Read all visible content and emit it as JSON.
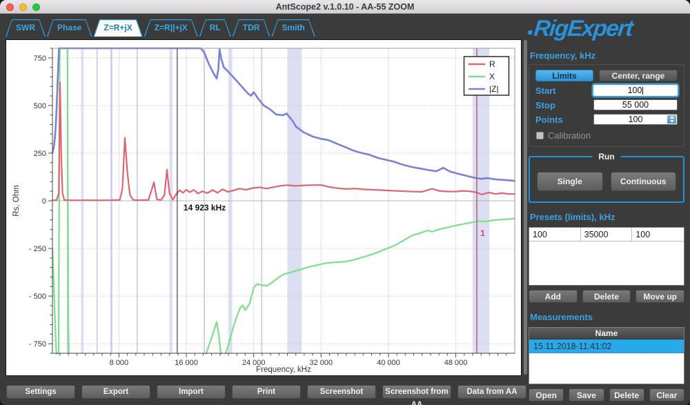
{
  "window": {
    "title": "AntScope2 v.1.0.10 - AA-55 ZOOM"
  },
  "tabs": [
    {
      "label": "SWR",
      "active": false
    },
    {
      "label": "Phase",
      "active": false
    },
    {
      "label": "Z=R+jX",
      "active": true
    },
    {
      "label": "Z=R||+jX",
      "active": false
    },
    {
      "label": "RL",
      "active": false
    },
    {
      "label": "TDR",
      "active": false
    },
    {
      "label": "Smith",
      "active": false
    }
  ],
  "chart_data": {
    "type": "line",
    "title": "",
    "xlabel": "Frequency, kHz",
    "ylabel": "Rs, Ohm",
    "xlim": [
      100,
      55000
    ],
    "ylim": [
      -800,
      800
    ],
    "xticks": [
      8000,
      16000,
      24000,
      32000,
      40000,
      48000
    ],
    "xtick_labels": [
      "8 000",
      "16 000",
      "24 000",
      "32 000",
      "40 000",
      "48 000"
    ],
    "yticks": [
      750,
      500,
      250,
      0,
      -250,
      -500,
      -750
    ],
    "ytick_labels": [
      "750",
      "500",
      "250",
      "0",
      "- 250",
      "- 500",
      "- 750"
    ],
    "grid": true,
    "legend_position": "top-right",
    "cursor_khz": 14923,
    "cursor_label": "14 923 kHz",
    "marker1_khz": 50500,
    "marker1_label": "1",
    "ham_bands_khz": [
      [
        1810,
        2000
      ],
      [
        3500,
        3800
      ],
      [
        5330,
        5405
      ],
      [
        7000,
        7200
      ],
      [
        10100,
        10150
      ],
      [
        14000,
        14350
      ],
      [
        18068,
        18168
      ],
      [
        21000,
        21450
      ],
      [
        24890,
        24990
      ],
      [
        28000,
        29700
      ],
      [
        50000,
        52000
      ]
    ],
    "band_color": "#8a93cf",
    "series": [
      {
        "name": "R",
        "color": "#e0646e",
        "width": 2.2,
        "points": [
          [
            100,
            2
          ],
          [
            600,
            3
          ],
          [
            850,
            40
          ],
          [
            1000,
            620
          ],
          [
            1150,
            230
          ],
          [
            1300,
            40
          ],
          [
            1500,
            4
          ],
          [
            2500,
            2
          ],
          [
            4000,
            3
          ],
          [
            5500,
            2
          ],
          [
            7000,
            3
          ],
          [
            8100,
            4
          ],
          [
            8400,
            60
          ],
          [
            8700,
            330
          ],
          [
            9000,
            150
          ],
          [
            9300,
            30
          ],
          [
            9700,
            4
          ],
          [
            10500,
            3
          ],
          [
            11500,
            4
          ],
          [
            12150,
            98
          ],
          [
            12500,
            8
          ],
          [
            13000,
            4
          ],
          [
            13400,
            30
          ],
          [
            13700,
            163
          ],
          [
            14000,
            40
          ],
          [
            14400,
            5
          ],
          [
            14800,
            35
          ],
          [
            15200,
            55
          ],
          [
            15600,
            42
          ],
          [
            16000,
            58
          ],
          [
            16400,
            45
          ],
          [
            16900,
            57
          ],
          [
            17400,
            38
          ],
          [
            17900,
            50
          ],
          [
            18500,
            40
          ],
          [
            19100,
            56
          ],
          [
            19700,
            42
          ],
          [
            20300,
            60
          ],
          [
            20900,
            47
          ],
          [
            21600,
            54
          ],
          [
            22300,
            64
          ],
          [
            23100,
            58
          ],
          [
            23900,
            67
          ],
          [
            24700,
            71
          ],
          [
            25500,
            64
          ],
          [
            26300,
            71
          ],
          [
            27100,
            78
          ],
          [
            28000,
            82
          ],
          [
            29000,
            78
          ],
          [
            30000,
            81
          ],
          [
            31000,
            82
          ],
          [
            32000,
            83
          ],
          [
            33000,
            72
          ],
          [
            34000,
            66
          ],
          [
            35000,
            62
          ],
          [
            36000,
            64
          ],
          [
            37000,
            60
          ],
          [
            38000,
            58
          ],
          [
            39000,
            56
          ],
          [
            40000,
            54
          ],
          [
            41000,
            52
          ],
          [
            42000,
            50
          ],
          [
            43000,
            48
          ],
          [
            44000,
            47
          ],
          [
            45200,
            63
          ],
          [
            46000,
            52
          ],
          [
            47000,
            49
          ],
          [
            48000,
            48
          ],
          [
            48800,
            52
          ],
          [
            49600,
            50
          ],
          [
            50400,
            45
          ],
          [
            51100,
            33
          ],
          [
            51900,
            43
          ],
          [
            52700,
            36
          ],
          [
            53500,
            40
          ],
          [
            54300,
            35
          ],
          [
            55000,
            36
          ]
        ]
      },
      {
        "name": "X",
        "color": "#7ddf8b",
        "width": 2.2,
        "points": [
          [
            100,
            -250
          ],
          [
            250,
            -430
          ],
          [
            400,
            -620
          ],
          [
            520,
            -760
          ],
          [
            620,
            -900
          ],
          [
            840,
            -900
          ],
          [
            880,
            -250
          ],
          [
            930,
            400
          ],
          [
            980,
            900
          ],
          [
            1880,
            900
          ],
          [
            1930,
            100
          ],
          [
            1990,
            -600
          ],
          [
            2050,
            -900
          ],
          [
            18150,
            -900
          ],
          [
            18600,
            -770
          ],
          [
            19100,
            -706
          ],
          [
            19600,
            -635
          ],
          [
            19850,
            -700
          ],
          [
            20100,
            -800
          ],
          [
            20400,
            -900
          ],
          [
            20700,
            -800
          ],
          [
            21000,
            -755
          ],
          [
            21400,
            -690
          ],
          [
            21900,
            -620
          ],
          [
            22400,
            -562
          ],
          [
            22700,
            -548
          ],
          [
            23000,
            -574
          ],
          [
            23500,
            -540
          ],
          [
            24000,
            -456
          ],
          [
            24400,
            -437
          ],
          [
            25000,
            -443
          ],
          [
            25600,
            -446
          ],
          [
            26200,
            -428
          ],
          [
            26900,
            -404
          ],
          [
            27600,
            -385
          ],
          [
            28300,
            -377
          ],
          [
            29100,
            -366
          ],
          [
            29900,
            -356
          ],
          [
            30700,
            -346
          ],
          [
            31600,
            -337
          ],
          [
            32600,
            -327
          ],
          [
            33700,
            -323
          ],
          [
            34800,
            -320
          ],
          [
            35800,
            -311
          ],
          [
            36800,
            -298
          ],
          [
            37800,
            -285
          ],
          [
            38800,
            -269
          ],
          [
            39800,
            -251
          ],
          [
            40800,
            -233
          ],
          [
            41800,
            -208
          ],
          [
            42800,
            -182
          ],
          [
            43800,
            -169
          ],
          [
            44600,
            -156
          ],
          [
            45200,
            -162
          ],
          [
            46000,
            -150
          ],
          [
            47000,
            -140
          ],
          [
            48000,
            -130
          ],
          [
            49000,
            -121
          ],
          [
            50000,
            -113
          ],
          [
            50700,
            -107
          ],
          [
            51500,
            -109
          ],
          [
            52300,
            -103
          ],
          [
            53300,
            -99
          ],
          [
            54300,
            -96
          ],
          [
            55000,
            -93
          ]
        ]
      },
      {
        "name": "|Z|",
        "color": "#7a80d4",
        "width": 2.6,
        "points": [
          [
            100,
            250
          ],
          [
            300,
            290
          ],
          [
            450,
            360
          ],
          [
            600,
            490
          ],
          [
            750,
            660
          ],
          [
            880,
            800
          ],
          [
            950,
            900
          ],
          [
            17700,
            900
          ],
          [
            18100,
            780
          ],
          [
            18700,
            715
          ],
          [
            19200,
            672
          ],
          [
            19600,
            641
          ],
          [
            19800,
            690
          ],
          [
            19950,
            795
          ],
          [
            20150,
            745
          ],
          [
            20450,
            700
          ],
          [
            21000,
            676
          ],
          [
            21800,
            638
          ],
          [
            22600,
            598
          ],
          [
            23300,
            564
          ],
          [
            23700,
            551
          ],
          [
            24000,
            570
          ],
          [
            24500,
            538
          ],
          [
            25200,
            500
          ],
          [
            25900,
            481
          ],
          [
            26700,
            452
          ],
          [
            27500,
            449
          ],
          [
            27900,
            458
          ],
          [
            28700,
            415
          ],
          [
            29000,
            390
          ],
          [
            29900,
            360
          ],
          [
            31000,
            337
          ],
          [
            32000,
            325
          ],
          [
            32900,
            318
          ],
          [
            33900,
            299
          ],
          [
            34800,
            283
          ],
          [
            35800,
            264
          ],
          [
            36800,
            251
          ],
          [
            37700,
            242
          ],
          [
            38800,
            224
          ],
          [
            39800,
            214
          ],
          [
            40600,
            206
          ],
          [
            41700,
            189
          ],
          [
            42800,
            177
          ],
          [
            43800,
            169
          ],
          [
            44800,
            161
          ],
          [
            45700,
            155
          ],
          [
            46500,
            173
          ],
          [
            47300,
            154
          ],
          [
            48100,
            144
          ],
          [
            49000,
            134
          ],
          [
            49700,
            126
          ],
          [
            50400,
            119
          ],
          [
            51000,
            115
          ],
          [
            51800,
            119
          ],
          [
            52600,
            113
          ],
          [
            53400,
            110
          ],
          [
            54100,
            108
          ],
          [
            54700,
            106
          ],
          [
            55000,
            104
          ]
        ]
      }
    ]
  },
  "sidebar": {
    "logo_text": "RigExpert",
    "frequency_label": "Frequency, kHz",
    "mode_toggle": {
      "limits": "Limits",
      "center_range": "Center, range",
      "active": "limits"
    },
    "fields": {
      "start_label": "Start",
      "start_value": "100",
      "stop_label": "Stop",
      "stop_value": "55 000",
      "points_label": "Points",
      "points_value": "100"
    },
    "calibration_label": "Calibration",
    "run": {
      "title": "Run",
      "single": "Single",
      "continuous": "Continuous"
    },
    "presets": {
      "title": "Presets (limits), kHz",
      "rows": [
        [
          "100",
          "35000",
          "100"
        ]
      ],
      "add": "Add",
      "delete": "Delete",
      "move_up": "Move up"
    },
    "measurements": {
      "title": "Measurements",
      "header": "Name",
      "rows": [
        "15.11.2018-11:41:02"
      ],
      "open": "Open",
      "save": "Save",
      "delete": "Delete",
      "clear": "Clear"
    }
  },
  "bottom_buttons": [
    "Settings",
    "Export",
    "Import",
    "Print",
    "Screenshot",
    "Screenshot from AA",
    "Data from AA"
  ]
}
